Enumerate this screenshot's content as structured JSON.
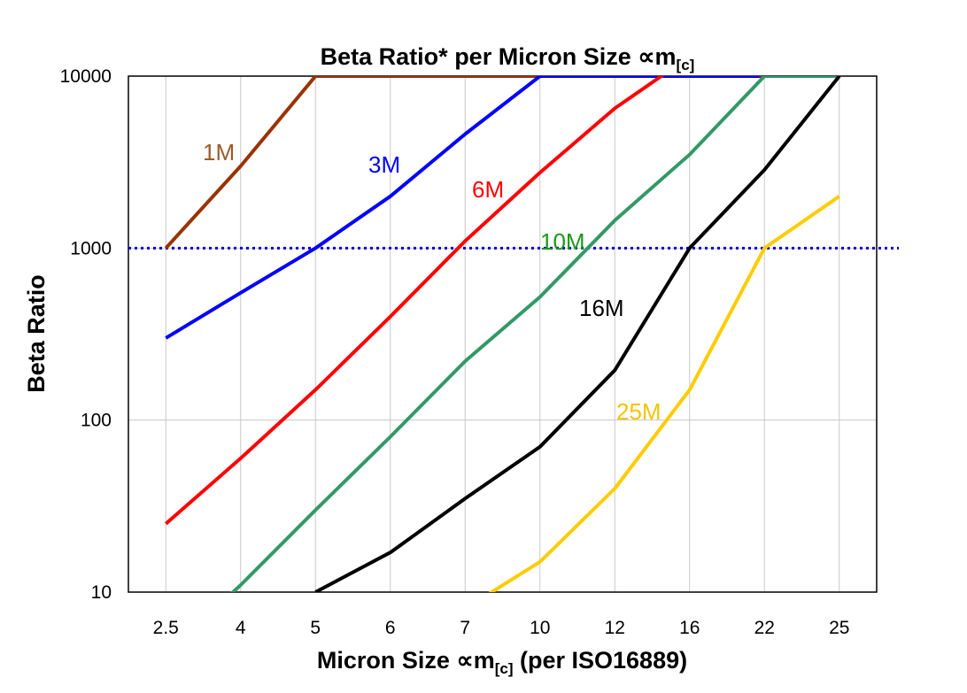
{
  "chart_data": {
    "type": "line",
    "title": "Beta Ratio* per Micron Size ∝m",
    "title_subscript": "[c]",
    "xlabel": "Micron Size ∝m",
    "xlabel_subscript": "[c]",
    "xlabel_suffix": " (per ISO16889)",
    "ylabel": "Beta Ratio",
    "y_scale": "log",
    "ylim": [
      10,
      10000
    ],
    "y_ticks": [
      "10",
      "100",
      "1000",
      "10000"
    ],
    "categories": [
      "2.5",
      "4",
      "5",
      "6",
      "7",
      "10",
      "12",
      "16",
      "22",
      "25"
    ],
    "grid": true,
    "reference_line": {
      "y": 1000,
      "style": "dotted",
      "color": "#0000cc"
    },
    "series": [
      {
        "name": "1M",
        "color": "#993300",
        "label_color": "#9b5a2a",
        "values": [
          1000,
          3000,
          10000,
          10000,
          10000,
          10000,
          10000,
          10000,
          10000,
          10000
        ]
      },
      {
        "name": "3M",
        "color": "#0000ff",
        "label_color": "#0000ff",
        "values": [
          300,
          550,
          1000,
          2000,
          4600,
          10000,
          10000,
          10000,
          10000,
          10000
        ]
      },
      {
        "name": "6M",
        "color": "#ff0000",
        "label_color": "#ff0000",
        "values": [
          25,
          60,
          150,
          400,
          1100,
          2750,
          6500,
          13000,
          10000,
          10000
        ]
      },
      {
        "name": "10M",
        "color": "#339966",
        "label_color": "#1a9a1a",
        "values": [
          4.4,
          11,
          30,
          80,
          220,
          520,
          1450,
          3500,
          10000,
          10000
        ]
      },
      {
        "name": "16M",
        "color": "#000000",
        "label_color": "#000000",
        "values": [
          null,
          null,
          10,
          17,
          35,
          70,
          195,
          1000,
          2850,
          10000
        ]
      },
      {
        "name": "25M",
        "color": "#ffcc00",
        "label_color": "#f5c400",
        "values": [
          null,
          null,
          null,
          null,
          8,
          15,
          40,
          150,
          1000,
          2000
        ]
      }
    ]
  }
}
